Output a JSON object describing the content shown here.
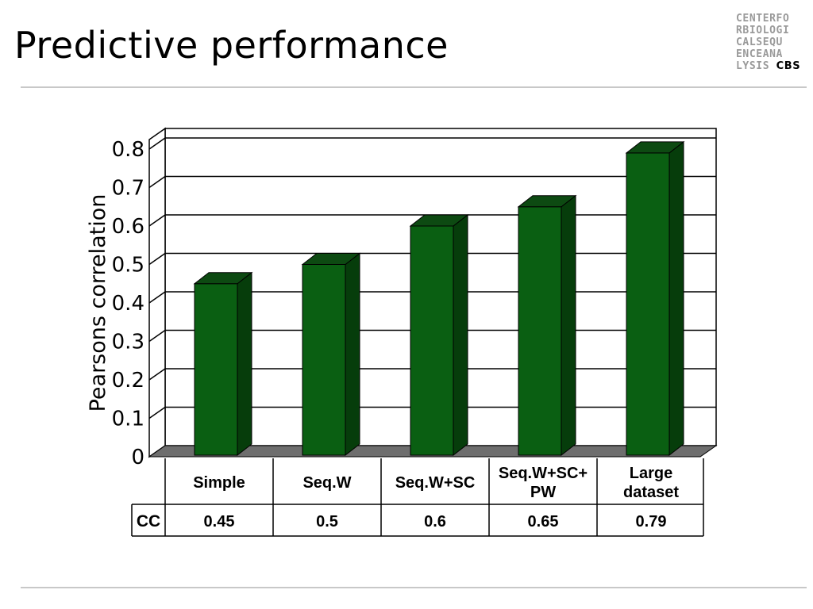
{
  "slide": {
    "title": "Predictive performance",
    "logo_lines": [
      "CENTERFO",
      "RBIOLOGI",
      "CALSEQU",
      "ENCEANA",
      "LYSIS"
    ],
    "logo_mark": "CBS"
  },
  "chart_data": {
    "type": "bar",
    "title": "",
    "ylabel": "Pearsons correlation",
    "xlabel": "",
    "categories": [
      [
        "Simple"
      ],
      [
        "Seq.W"
      ],
      [
        "Seq.W+SC"
      ],
      [
        "Seq.W+SC+",
        "PW"
      ],
      [
        "Large",
        "dataset"
      ]
    ],
    "values": [
      0.45,
      0.5,
      0.6,
      0.65,
      0.79
    ],
    "ylim": [
      0,
      0.8
    ],
    "yticks": [
      "0",
      "0.1",
      "0.2",
      "0.3",
      "0.4",
      "0.5",
      "0.6",
      "0.7",
      "0.8"
    ],
    "grid": true,
    "table_row_label": "CC",
    "table_values": [
      "0.45",
      "0.5",
      "0.6",
      "0.65",
      "0.79"
    ],
    "colors": {
      "bar_front": "#0a5f12",
      "bar_side": "#063d0b",
      "bar_top": "#0d4a12",
      "floor": "#6e6e6e"
    }
  }
}
